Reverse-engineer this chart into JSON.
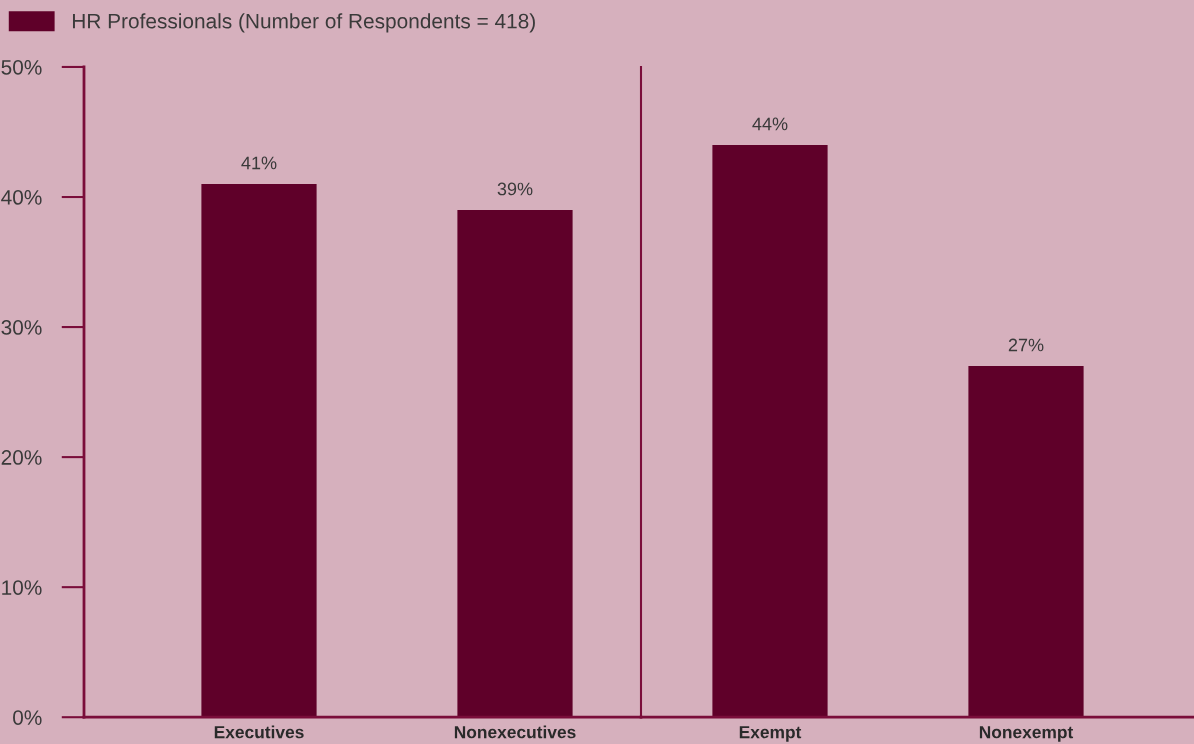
{
  "chart_data": [
    {
      "type": "bar",
      "categories": [
        "Executives",
        "Nonexecutives"
      ],
      "series": [
        {
          "name": "HR Professionals (Number of Respondents = 418)",
          "color": "#5f0029",
          "values": [
            41,
            39
          ]
        }
      ],
      "ylim": [
        0,
        50
      ],
      "yticks": [
        {
          "value": 0,
          "label": "0%"
        },
        {
          "value": 10,
          "label": "10%"
        },
        {
          "value": 20,
          "label": "20%"
        },
        {
          "value": 30,
          "label": "30%"
        },
        {
          "value": 40,
          "label": "40%"
        },
        {
          "value": 50,
          "label": "50%"
        }
      ],
      "value_labels": [
        "41%",
        "39%"
      ],
      "legend": "top left",
      "grid": false
    },
    {
      "type": "bar",
      "categories": [
        "Exempt",
        "Nonexempt"
      ],
      "series": [
        {
          "color": "#5f0029",
          "values": [
            44,
            27
          ]
        }
      ],
      "ylim": [
        0,
        50
      ],
      "tick_labels": "x",
      "value_labels": [
        "44%",
        "27%"
      ],
      "grid": false
    }
  ]
}
